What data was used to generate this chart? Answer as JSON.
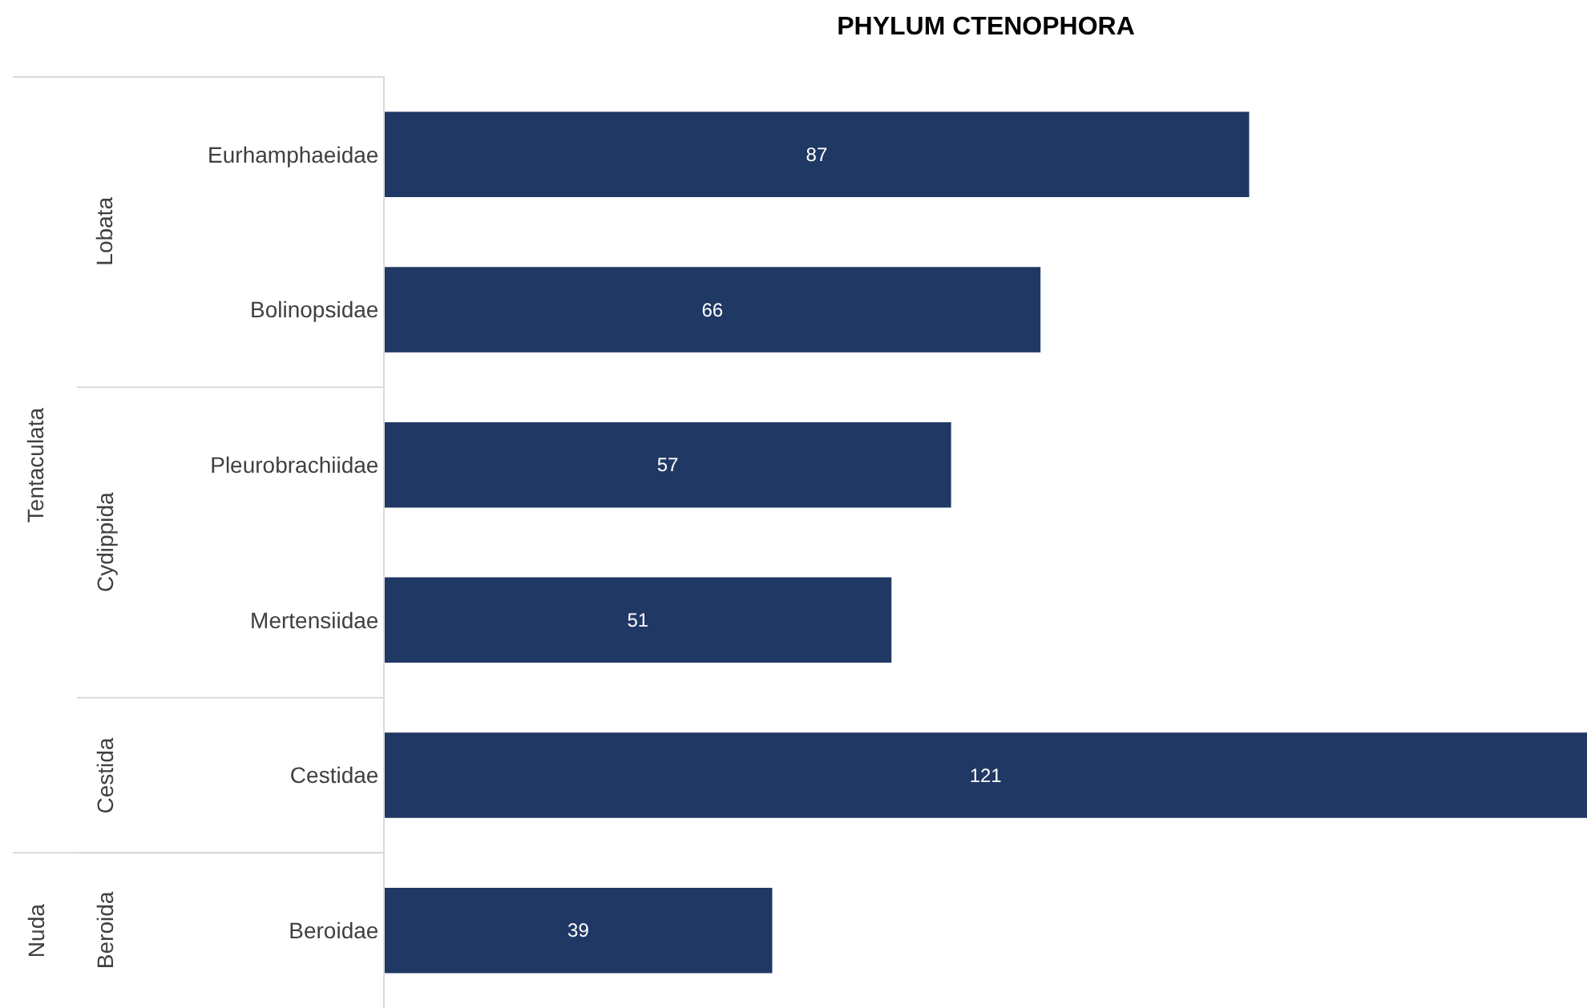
{
  "chart_data": {
    "type": "bar",
    "orientation": "horizontal",
    "title": "PHYLUM CTENOPHORA",
    "categories": [
      "Eurhamphaeidae",
      "Bolinopsidae",
      "Pleurobrachiidae",
      "Mertensiidae",
      "Cestidae",
      "Beroidae"
    ],
    "values": [
      87,
      66,
      57,
      51,
      121,
      39
    ],
    "color": "#203864",
    "data_labels": true,
    "legend": false,
    "annotations": [
      "Lobata",
      "Cydippida",
      "Cestida",
      "Beroida",
      "Tentaculata",
      "Nuda"
    ]
  }
}
